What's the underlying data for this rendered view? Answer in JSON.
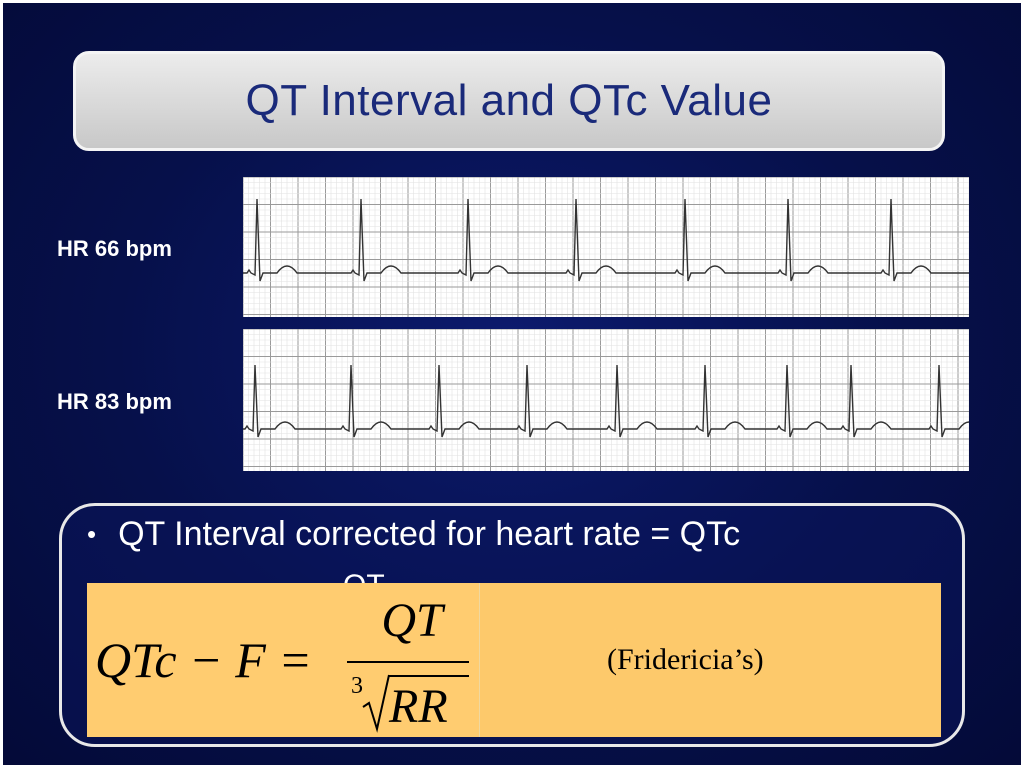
{
  "slide": {
    "title": "QT Interval and QTc Value",
    "strips": [
      {
        "label": "HR 66 bpm"
      },
      {
        "label": "HR 83 bpm"
      }
    ],
    "bullet": {
      "marker": "•",
      "text": "QT Interval corrected for heart rate = QTc",
      "partial_fragment": "QT"
    },
    "formula": {
      "lhs": "QTc − F =",
      "numerator": "QT",
      "root_index": "3",
      "denominator": "RR",
      "note": "(Fridericia’s)"
    },
    "colors": {
      "background": "#06104a",
      "title_text": "#1a2a7a",
      "formula_box": "#fdc96b",
      "ecg_grid": "#bdbdbd",
      "ecg_trace": "#333333"
    }
  }
}
